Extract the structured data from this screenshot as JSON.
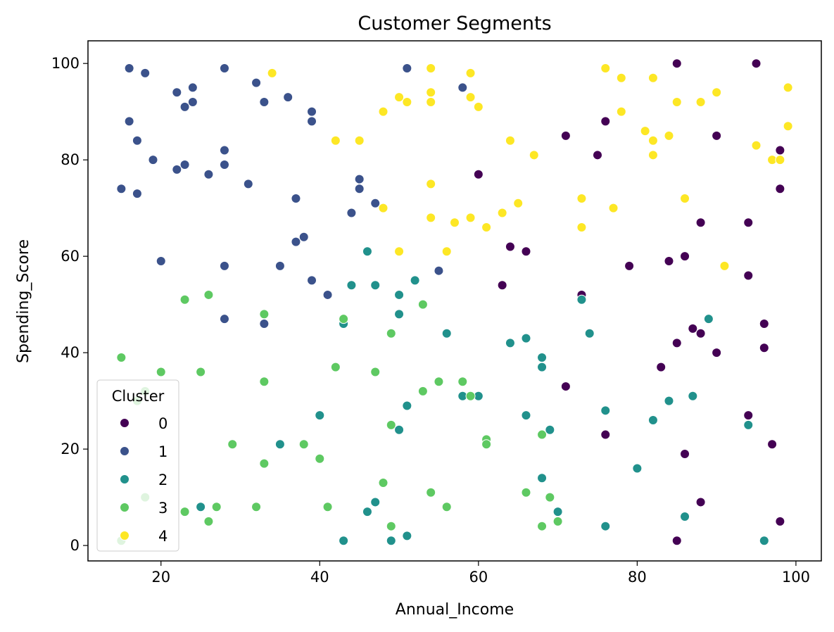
{
  "chart_data": {
    "type": "scatter",
    "title": "Customer Segments",
    "xlabel": "Annual_Income",
    "ylabel": "Spending_Score",
    "xlim": [
      10.8,
      103.2
    ],
    "ylim": [
      -3.2,
      104.7
    ],
    "xticks": [
      20,
      40,
      60,
      80,
      100
    ],
    "yticks": [
      0,
      20,
      40,
      60,
      80,
      100
    ],
    "grid": false,
    "legend": {
      "title": "Cluster",
      "placement": "lower-left"
    },
    "series": [
      {
        "name": "0",
        "color": "#440154",
        "points": [
          [
            85,
            100
          ],
          [
            95,
            100
          ],
          [
            76,
            88
          ],
          [
            71,
            85
          ],
          [
            90,
            85
          ],
          [
            75,
            81
          ],
          [
            98,
            82
          ],
          [
            60,
            77
          ],
          [
            98,
            74
          ],
          [
            88,
            67
          ],
          [
            94,
            67
          ],
          [
            64,
            62
          ],
          [
            66,
            61
          ],
          [
            79,
            58
          ],
          [
            84,
            59
          ],
          [
            86,
            60
          ],
          [
            94,
            56
          ],
          [
            63,
            54
          ],
          [
            73,
            52
          ],
          [
            96,
            46
          ],
          [
            87,
            45
          ],
          [
            88,
            44
          ],
          [
            85,
            42
          ],
          [
            90,
            40
          ],
          [
            96,
            41
          ],
          [
            83,
            37
          ],
          [
            71,
            33
          ],
          [
            94,
            27
          ],
          [
            76,
            23
          ],
          [
            86,
            19
          ],
          [
            97,
            21
          ],
          [
            88,
            9
          ],
          [
            98,
            5
          ],
          [
            85,
            1
          ]
        ]
      },
      {
        "name": "1",
        "color": "#3b528b",
        "points": [
          [
            16,
            99
          ],
          [
            18,
            98
          ],
          [
            28,
            99
          ],
          [
            51,
            99
          ],
          [
            22,
            94
          ],
          [
            24,
            95
          ],
          [
            32,
            96
          ],
          [
            24,
            92
          ],
          [
            23,
            91
          ],
          [
            33,
            92
          ],
          [
            36,
            93
          ],
          [
            58,
            95
          ],
          [
            39,
            90
          ],
          [
            16,
            88
          ],
          [
            39,
            88
          ],
          [
            17,
            84
          ],
          [
            19,
            80
          ],
          [
            28,
            82
          ],
          [
            22,
            78
          ],
          [
            23,
            79
          ],
          [
            26,
            77
          ],
          [
            28,
            79
          ],
          [
            31,
            75
          ],
          [
            15,
            74
          ],
          [
            17,
            73
          ],
          [
            45,
            76
          ],
          [
            45,
            74
          ],
          [
            37,
            72
          ],
          [
            47,
            71
          ],
          [
            44,
            69
          ],
          [
            38,
            64
          ],
          [
            37,
            63
          ],
          [
            20,
            59
          ],
          [
            28,
            58
          ],
          [
            35,
            58
          ],
          [
            55,
            57
          ],
          [
            39,
            55
          ],
          [
            41,
            52
          ],
          [
            28,
            47
          ],
          [
            33,
            46
          ]
        ]
      },
      {
        "name": "2",
        "color": "#21918c",
        "points": [
          [
            46,
            61
          ],
          [
            52,
            55
          ],
          [
            44,
            54
          ],
          [
            47,
            54
          ],
          [
            50,
            52
          ],
          [
            73,
            51
          ],
          [
            50,
            48
          ],
          [
            89,
            47
          ],
          [
            43,
            46
          ],
          [
            56,
            44
          ],
          [
            66,
            43
          ],
          [
            74,
            44
          ],
          [
            64,
            42
          ],
          [
            68,
            39
          ],
          [
            68,
            37
          ],
          [
            87,
            31
          ],
          [
            58,
            31
          ],
          [
            60,
            31
          ],
          [
            51,
            29
          ],
          [
            84,
            30
          ],
          [
            76,
            28
          ],
          [
            40,
            27
          ],
          [
            66,
            27
          ],
          [
            82,
            26
          ],
          [
            94,
            25
          ],
          [
            50,
            24
          ],
          [
            69,
            24
          ],
          [
            35,
            21
          ],
          [
            80,
            16
          ],
          [
            68,
            14
          ],
          [
            25,
            8
          ],
          [
            46,
            7
          ],
          [
            47,
            9
          ],
          [
            70,
            7
          ],
          [
            86,
            6
          ],
          [
            76,
            4
          ],
          [
            43,
            1
          ],
          [
            49,
            1
          ],
          [
            51,
            2
          ],
          [
            96,
            1
          ]
        ]
      },
      {
        "name": "3",
        "color": "#5ec962",
        "points": [
          [
            26,
            52
          ],
          [
            23,
            51
          ],
          [
            33,
            48
          ],
          [
            53,
            50
          ],
          [
            43,
            47
          ],
          [
            49,
            44
          ],
          [
            15,
            39
          ],
          [
            20,
            36
          ],
          [
            25,
            36
          ],
          [
            42,
            37
          ],
          [
            47,
            36
          ],
          [
            33,
            34
          ],
          [
            55,
            34
          ],
          [
            58,
            34
          ],
          [
            53,
            32
          ],
          [
            59,
            31
          ],
          [
            49,
            25
          ],
          [
            29,
            21
          ],
          [
            38,
            21
          ],
          [
            61,
            22
          ],
          [
            61,
            21
          ],
          [
            68,
            23
          ],
          [
            33,
            17
          ],
          [
            40,
            18
          ],
          [
            48,
            13
          ],
          [
            54,
            11
          ],
          [
            66,
            11
          ],
          [
            69,
            10
          ],
          [
            18,
            10
          ],
          [
            23,
            7
          ],
          [
            27,
            8
          ],
          [
            32,
            8
          ],
          [
            41,
            8
          ],
          [
            56,
            8
          ],
          [
            26,
            5
          ],
          [
            49,
            4
          ],
          [
            68,
            4
          ],
          [
            70,
            5
          ],
          [
            15,
            1
          ],
          [
            18,
            32
          ],
          [
            17,
            30
          ]
        ]
      },
      {
        "name": "4",
        "color": "#fde725",
        "points": [
          [
            34,
            98
          ],
          [
            54,
            99
          ],
          [
            59,
            98
          ],
          [
            76,
            99
          ],
          [
            78,
            97
          ],
          [
            82,
            97
          ],
          [
            54,
            94
          ],
          [
            50,
            93
          ],
          [
            51,
            92
          ],
          [
            54,
            92
          ],
          [
            59,
            93
          ],
          [
            60,
            91
          ],
          [
            48,
            90
          ],
          [
            85,
            92
          ],
          [
            88,
            92
          ],
          [
            90,
            94
          ],
          [
            99,
            95
          ],
          [
            78,
            90
          ],
          [
            42,
            84
          ],
          [
            45,
            84
          ],
          [
            64,
            84
          ],
          [
            81,
            86
          ],
          [
            82,
            84
          ],
          [
            84,
            85
          ],
          [
            99,
            87
          ],
          [
            95,
            83
          ],
          [
            67,
            81
          ],
          [
            82,
            81
          ],
          [
            97,
            80
          ],
          [
            98,
            80
          ],
          [
            54,
            75
          ],
          [
            73,
            72
          ],
          [
            86,
            72
          ],
          [
            65,
            71
          ],
          [
            48,
            70
          ],
          [
            77,
            70
          ],
          [
            54,
            68
          ],
          [
            59,
            68
          ],
          [
            63,
            69
          ],
          [
            57,
            67
          ],
          [
            61,
            66
          ],
          [
            73,
            66
          ],
          [
            50,
            61
          ],
          [
            56,
            61
          ],
          [
            91,
            58
          ]
        ]
      }
    ]
  }
}
